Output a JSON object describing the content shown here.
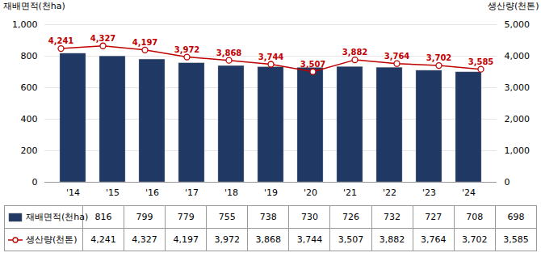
{
  "chart_data": {
    "type": "bar",
    "categories": [
      "'14",
      "'15",
      "'16",
      "'17",
      "'18",
      "'19",
      "'20",
      "'21",
      "'22",
      "'23",
      "'24"
    ],
    "ylabel": "재배면적(천ha)",
    "y2label": "생산량(천톤)",
    "ylim": [
      0,
      1000
    ],
    "yticks": [
      0,
      200,
      400,
      600,
      800,
      {
        "value": 1000,
        "label": "1,000"
      }
    ],
    "y2lim": [
      0,
      5000
    ],
    "y2ticks": [
      0,
      {
        "value": 1000,
        "label": "1,000"
      },
      {
        "value": 2000,
        "label": "2,000"
      },
      {
        "value": 3000,
        "label": "3,000"
      },
      {
        "value": 4000,
        "label": "4,000"
      },
      {
        "value": 5000,
        "label": "5,000"
      }
    ],
    "grid": true,
    "legend": "bottom",
    "series": [
      {
        "name": "재배면적(천ha)",
        "type": "bar",
        "color": "#1f3864",
        "values": [
          816,
          799,
          779,
          755,
          738,
          730,
          726,
          732,
          727,
          708,
          698
        ]
      },
      {
        "name": "생산량(천톤)",
        "type": "line",
        "axis": "y2",
        "color": "#c00000",
        "marker": "o",
        "data_labels": true,
        "values": [
          4241,
          4327,
          4197,
          3972,
          3868,
          3744,
          3507,
          3882,
          3764,
          3702,
          3585
        ],
        "value_labels": [
          "4,241",
          "4,327",
          "4,197",
          "3,972",
          "3,868",
          "3,744",
          "3,507",
          "3,882",
          "3,764",
          "3,702",
          "3,585"
        ]
      }
    ]
  }
}
